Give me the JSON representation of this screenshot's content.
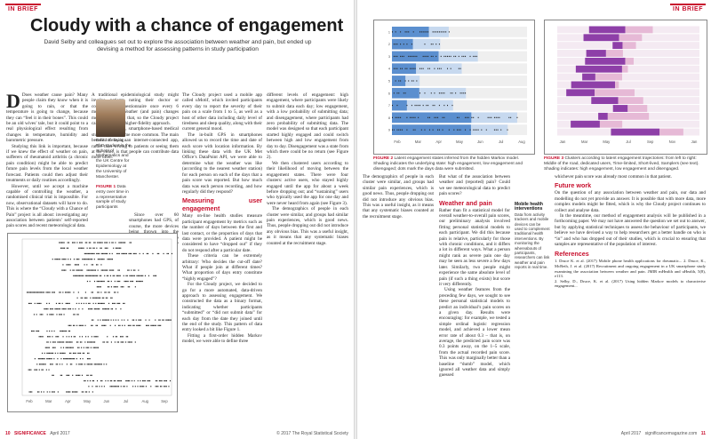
{
  "left_page": {
    "rubric": "IN BRIEF",
    "title": "Cloudy with a chance of engagement",
    "standfirst": "David Selby and colleagues set out to explore the association between weather and pain, but ended up devising a method for assessing patterns in study participation",
    "author_caption": "David Selby is a PhD student in the School of Mathematics and the UK Centre for Epidemiology at the University of Manchester.",
    "figure1_caption": {
      "label": "FIGURE 1",
      "text": "Data entry over time in a representative sample of study participants"
    },
    "body": [
      "Does weather cause pain? Many people claim they know when it is going to rain, or that the temperature is going to change, because they can “feel it in their bones”. This could be an old wives’ tale, but it could point to a real physiological effect resulting from changes in temperature, humidity and barometric pressure.",
      "Studying this link is important, because if we knew the effect of weather on pain, sufferers of rheumatoid arthritis (a chronic pain condition) might be able to predict future pain levels from the local weather forecast. Patients could then adjust their treatments or daily routines accordingly.",
      "However, until we accept a machine capable of controlling the weather, a randomised clinical trial is impossible. For now, observational datasets will have to do. This is where the “Cloudy with a Chance of Pain” project is all about: investigating any association between patients’ self-reported pain scores and recent meteorological data.",
      "A traditional epidemiological study might involve patients noting their doctor or completing a questionnaire once every 6 months or so. Weather (and pain) changes more rapidly than that, so the Cloudy project called for a much higher-fidelity approach.",
      "In recent years, smartphone-based medical studies have become more common. The main benefit of using an internet-connected app, rather than writing to patients or seeing them at the clinic, is that people can contribute data more often.",
      "Since over 60 smartphones had GPS, of course, the more devices being thrown into the study, the more participants can contribute richer data; self-reported data causes problems, too: in an unbalanced experiment, participants might be quite enthusiastic about contributing at one point, but lose interest later. Self-reported data is self-selected.",
      "The Cloudy project used a mobile app called uMotif, which invited participants every day to report the severity of their pain on a scale from 1 to 5, as well as a host of other data including daily level of tiredness and sleep quality, along with their current general mood.",
      "The in-built GPS in smartphones allowed us to record the time and date of each score with location information. By linking these data with the UK Met Office’s DataPoint API, we were able to determine what the weather was like (according to the nearest weather station) for each person on each of the days that a pain score was reported. But how much data was each person recording, and how regularly did they respond?"
    ],
    "subhead": "Measuring user engagement",
    "body2": [
      "Many on-line health studies measure participant engagement by metrics such as the number of days between the first and last contact, or the proportion of days that data were provided. A patient might be considered to have “dropped out” if they do not respond after a particular date.",
      "These criteria can be extremely arbitrary: Who decides the cut-off date? What if people join at different times? What proportion of days entry constitute “highly engaged”?",
      "For the Cloudy project, we decided to go for a more automated, data-driven approach to assessing engagement. We constructed the data as a binary format, indicating whether participants “submitted” or “did not submit data” for each day from the date they joined until the end of the study. This pattern of data entry looked a bit like Figure 1.",
      "Fitting a first-order hidden Markov model, we were able to define three"
    ],
    "col3": [
      "different levels of engagement: high engagement, where participants were likely to submit data each day; low engagement, with a low probability of submitting data; and disengagement, where participants had zero probability of submitting data. The model was designed so that each participant started highly engaged and could switch between high and low engagement from day to day. Disengagement was a state from which there could be no return (see Figure 2).",
      "We then clustered users according to their likelihood of moving between the engagement states. There were four clusters: active users, who stayed highly engaged until the app for about a week before dropping out; and “sustaining” users who typically used the app for one day and were never heard from again (see Figure 3).",
      "The demographics of people in each cluster were similar, and groups had similar pain experiences, which is good news. Thus, people dropping out did not introduce any obvious bias. This was a useful insight, as it means that any systematic biases counted at the recruitment stage."
    ],
    "footer": {
      "page": "10",
      "magazine": "SIGNIFICANCE",
      "date": "April 2017",
      "copyright": "© 2017 The Royal Statistical Society"
    }
  },
  "right_page": {
    "rubric": "IN BRIEF",
    "figure2_caption": {
      "label": "FIGURE 2",
      "text": "Latent engagement states inferred from the hidden Markov model. Shading indicates the underlying state: high engagement, low engagement and disengaged; dots mark the days data were submitted."
    },
    "figure3_caption": {
      "label": "FIGURE 3",
      "text": "Clusters according to latent engagement trajectories: from left to right: Middle of the road, dedicated users, Time-limited, Short-lived, Samplers (see text). Shading indicates: high engagement, low engagement and disengaged."
    },
    "col1": [
      "But what of the association between weather and (reported) pain? Could we see meteorological data to predict pain scores?"
    ],
    "subhead1": "Weather and pain",
    "col1b": [
      "Rather than fit a statistical model for overall weather-to-overall pain scores, our preliminary analysis involved fitting personal statistical models to each participant. We did this because pain is relative, particularly for those with chronic conditions, and it differs a lot in different ways. What a person might rank as severe pain one day may be seen as less severe a few days later. Similarly, two people might experience the same absolute level of pain (if such a thing exists) but score it very differently.",
      "Using weather features from the preceding few days, we sought to see these personal statistical models to predict an individual’s pain scores on a given day. Results were encouraging: for example, we tested a simple ordinal logistic regression model, and achieved a lower mean error rate of about 0.3 – that is, on average, the predicted pain score was 0.3 points away, on the 1–5 scale, from the actual recorded pain score. This was only marginally better than a baseline “dumb” model, which ignored all weather data and simply guessed"
    ],
    "sidebox": {
      "heading": "Mobile health interventions",
      "text": "Data from activity trackers and mobile devices can be used to complement traditional health interventions. By monitoring the whereabouts of participants, researchers can link weather and pain reports in real time."
    },
    "col2": [
      "whichever pain score was already most common in that patient.",
      "On the question of any association between weather and pain, our data and modelling do not yet provide an answer. It is possible that with more data, more complex models might be fitted, which is why the Cloudy project continues to collect and analyse data.",
      "In the meantime, our method of engagement analysis will be published in a forthcoming paper. We may not have answered the question we set out to answer, but by applying statistical techniques to assess the behaviour of participants, we believe we have devised a way to help researchers get a better handle on who is “in” and who has dropped out of their studies, which is crucial to ensuring that samples are representative of the population of interest."
    ],
    "subhead2": "Future work",
    "references": [
      "1. Druce K. et al. (2017) Mobile phone health applications for rheumatic... 2. Druce, K., McBeth, J. et al. (2017) Recruitment and ongoing engagement in a UK smartphone study examining the association between weather and pain. JMIR mHealth and uHealth, 5(8), e113.",
      "2. Selby, D., Druce, K. et al. (2017) Using hidden Markov models to characterise engagement..."
    ],
    "footer": {
      "date": "April 2017",
      "site": "significancemagazine.com",
      "page": "11"
    }
  },
  "colors": {
    "accent": "#c8102e",
    "blue": "#1f6fb3",
    "high": "#5b8fcf",
    "low": "#c7d9ef",
    "dis": "#efefef",
    "purple": "#8e3fa8",
    "pink": "#e6b9d6"
  },
  "fig1": {
    "participants": 28,
    "x_ticks": [
      "Feb",
      "Mar",
      "Apr",
      "May",
      "Jun",
      "Jul",
      "Aug",
      "Sep"
    ],
    "xlabel": "",
    "ylabel": "Participant"
  },
  "fig2": {
    "participants": 9,
    "x_ticks": [
      "Feb",
      "Mar",
      "Apr",
      "May",
      "Jun",
      "Jul",
      "Aug"
    ]
  },
  "fig3": {
    "participants": 14,
    "x_ticks": [
      "Jan",
      "Mar",
      "May",
      "Jul",
      "Sep",
      "Nov",
      "Jan"
    ]
  }
}
